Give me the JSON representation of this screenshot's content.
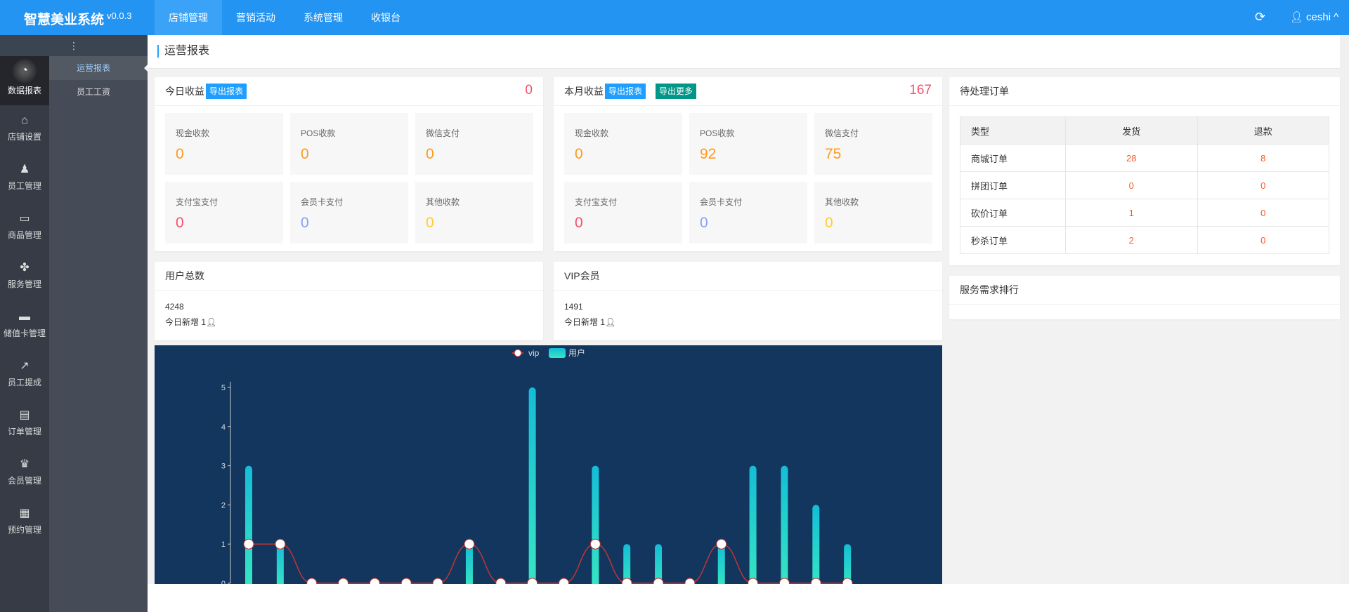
{
  "header": {
    "logo": "智慧美业系统",
    "version": "v0.0.3",
    "nav": [
      {
        "label": "店铺管理",
        "active": true
      },
      {
        "label": "营销活动"
      },
      {
        "label": "系统管理"
      },
      {
        "label": "收银台"
      }
    ],
    "refresh_icon": "refresh-icon",
    "user": "ceshi"
  },
  "sidebar": {
    "toggle": "⋮",
    "items": [
      {
        "label": "数据报表",
        "icon": "◔",
        "active": true
      },
      {
        "label": "店铺设置",
        "icon": "⌂"
      },
      {
        "label": "员工管理",
        "icon": "♟"
      },
      {
        "label": "商品管理",
        "icon": "▭"
      },
      {
        "label": "服务管理",
        "icon": "✤"
      },
      {
        "label": "储值卡管理",
        "icon": "▬"
      },
      {
        "label": "员工提成",
        "icon": "↗"
      },
      {
        "label": "订单管理",
        "icon": "▤"
      },
      {
        "label": "会员管理",
        "icon": "♛"
      },
      {
        "label": "预约管理",
        "icon": "▦"
      }
    ],
    "submenu": [
      {
        "label": "运营报表",
        "active": true
      },
      {
        "label": "员工工资"
      }
    ]
  },
  "page_title": "运营报表",
  "today": {
    "title": "今日收益",
    "export": "导出报表",
    "total": "0",
    "tiles": [
      {
        "label": "现金收款",
        "value": "0",
        "color": "or"
      },
      {
        "label": "POS收款",
        "value": "0",
        "color": "or"
      },
      {
        "label": "微信支付",
        "value": "0",
        "color": "or"
      },
      {
        "label": "支付宝支付",
        "value": "0",
        "color": "rd"
      },
      {
        "label": "会员卡支付",
        "value": "0",
        "color": "bl"
      },
      {
        "label": "其他收款",
        "value": "0",
        "color": "ye"
      }
    ]
  },
  "month": {
    "title": "本月收益",
    "export": "导出报表",
    "export_more": "导出更多",
    "total": "167",
    "tiles": [
      {
        "label": "现金收款",
        "value": "0",
        "color": "or"
      },
      {
        "label": "POS收款",
        "value": "92",
        "color": "or"
      },
      {
        "label": "微信支付",
        "value": "75",
        "color": "or"
      },
      {
        "label": "支付宝支付",
        "value": "0",
        "color": "rd"
      },
      {
        "label": "会员卡支付",
        "value": "0",
        "color": "bl"
      },
      {
        "label": "其他收款",
        "value": "0",
        "color": "ye"
      }
    ]
  },
  "users": {
    "title": "用户总数",
    "count": "4248",
    "today_new": "今日新增 1"
  },
  "vip": {
    "title": "VIP会员",
    "count": "1491",
    "today_new": "今日新增 1"
  },
  "orders": {
    "title": "待处理订单",
    "headers": [
      "类型",
      "发货",
      "退款"
    ],
    "rows": [
      [
        "商城订单",
        "28",
        "8"
      ],
      [
        "拼团订单",
        "0",
        "0"
      ],
      [
        "砍价订单",
        "1",
        "0"
      ],
      [
        "秒杀订单",
        "2",
        "0"
      ]
    ]
  },
  "service_rank": {
    "title": "服务需求排行"
  },
  "chart_data": {
    "type": "bar+line",
    "ylim": [
      0,
      5
    ],
    "yticks": [
      "0",
      "1",
      "2",
      "3",
      "4",
      "5"
    ],
    "background": "#12365e",
    "series": [
      {
        "name": "vip",
        "type": "line",
        "smooth": true,
        "color": "#c23531",
        "values": [
          1,
          1,
          0,
          0,
          0,
          0,
          0,
          1,
          0,
          0,
          0,
          1,
          0,
          0,
          0,
          1,
          0,
          0,
          0,
          0
        ]
      },
      {
        "name": "用户",
        "type": "bar",
        "color": "#1fc8d0",
        "values": [
          3,
          1,
          0,
          0,
          0,
          0,
          0,
          1,
          0,
          5,
          0,
          3,
          1,
          1,
          0,
          1,
          3,
          3,
          2,
          1
        ]
      }
    ],
    "legend": "top-center"
  }
}
